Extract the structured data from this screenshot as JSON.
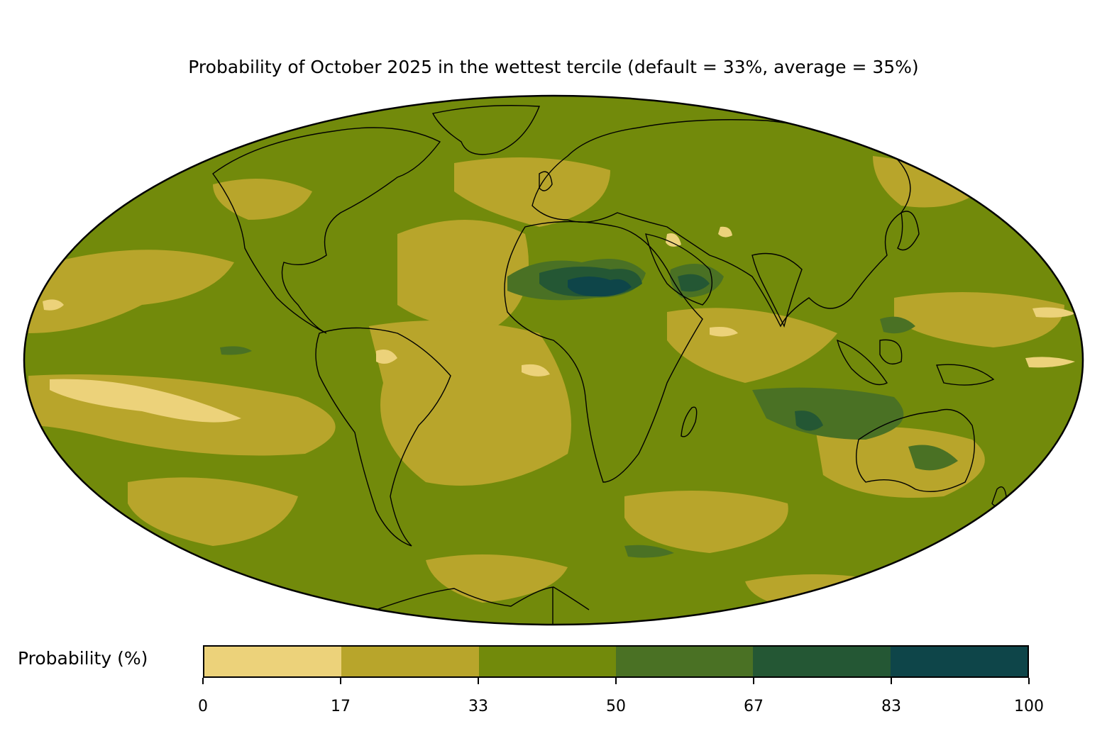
{
  "title": "Probability of October 2025 in the wettest tercile (default = 33%, average = 35%)",
  "projection": "Mollweide",
  "colorbar": {
    "label": "Probability (%)",
    "ticks": [
      "0",
      "17",
      "33",
      "50",
      "67",
      "83",
      "100"
    ],
    "bins": [
      {
        "range": "0-17",
        "color": "#ecd27a"
      },
      {
        "range": "17-33",
        "color": "#b8a52b"
      },
      {
        "range": "33-50",
        "color": "#728a0b"
      },
      {
        "range": "50-67",
        "color": "#4a7124"
      },
      {
        "range": "67-83",
        "color": "#245734"
      },
      {
        "range": "83-100",
        "color": "#0e4549"
      }
    ]
  },
  "colors": {
    "coastline": "#000000",
    "borders": "#7a7a7a",
    "background_field": "#728a0b"
  }
}
